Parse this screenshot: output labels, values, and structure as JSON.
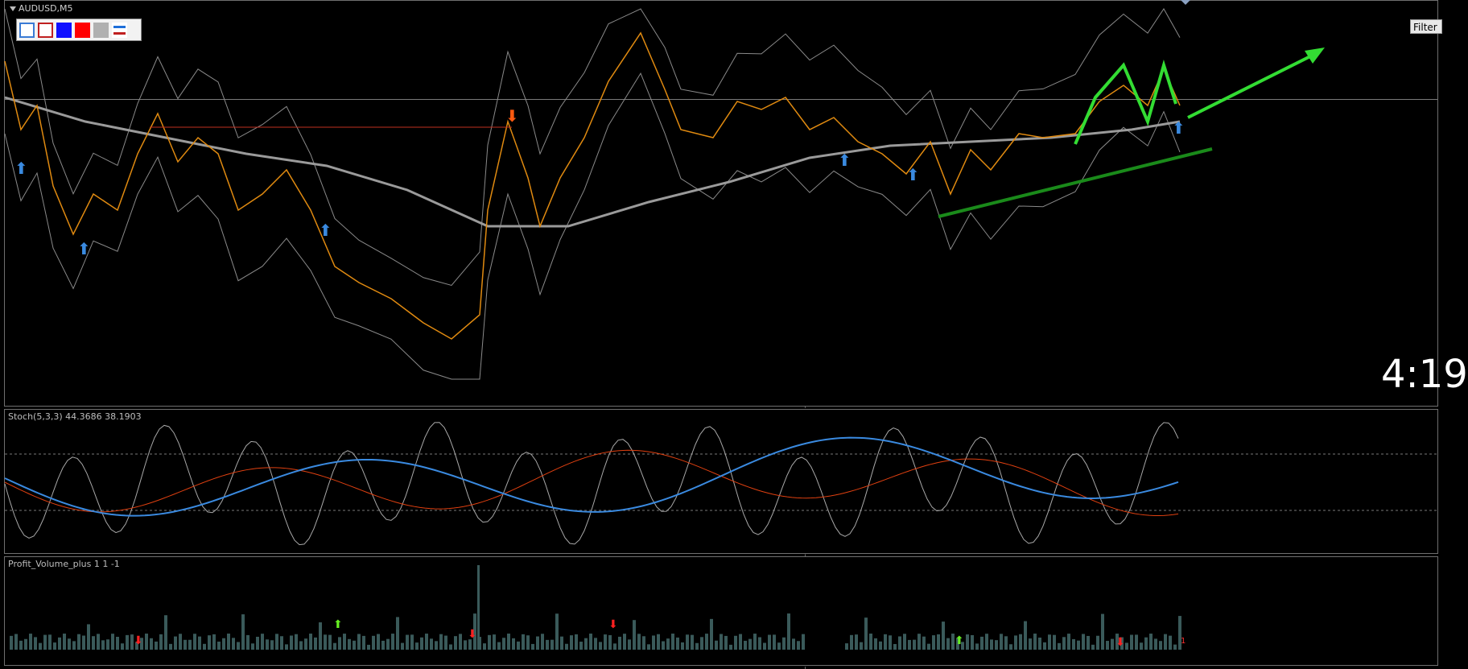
{
  "window": {
    "symbol_title": "AUDUSD,M5"
  },
  "toolbar": {
    "buttons": [
      {
        "icon": "blue-outline-square-icon"
      },
      {
        "icon": "red-outline-square-icon"
      },
      {
        "icon": "blue-fill-square-icon"
      },
      {
        "icon": "red-fill-square-icon"
      },
      {
        "icon": "gray-fill-square-icon"
      },
      {
        "icon": "lines-icon"
      }
    ]
  },
  "filter_button": {
    "label": "Filter"
  },
  "clock": {
    "text": "4:19"
  },
  "stoch_indicator": {
    "label": "Stoch(5,3,3) 44.3686 38.1903"
  },
  "volume_indicator": {
    "label": "Profit_Volume_plus 1 1 -1",
    "last_value": "1"
  },
  "colors": {
    "background": "#000000",
    "bollinger": "#8a8a8a",
    "ma_slow": "#9a9a9a",
    "price": "#e08a10",
    "up_arrow": "#3a8ae0",
    "down_arrow": "#ff5a10",
    "trend_arrow": "#33dd33",
    "trend_line": "#1a8a1a",
    "stoch_main": "#3a8ae0",
    "stoch_signal": "#e04010",
    "volume_bar": "#3a5a5a"
  }
}
